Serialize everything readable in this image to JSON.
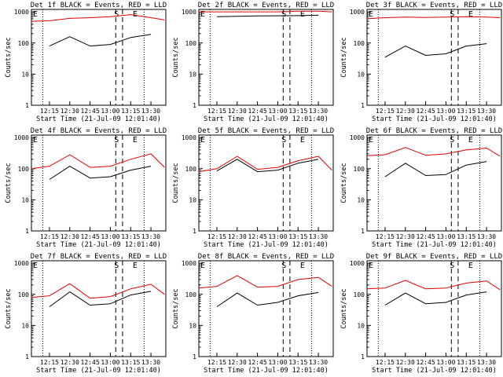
{
  "figure": {
    "background": "#ffffff",
    "colors": {
      "events": "#000000",
      "lld": "#e00000",
      "axes": "#000000"
    }
  },
  "chart_data": [
    {
      "type": "line",
      "title": "Det 1f BLACK = Events, RED = LLD",
      "xlabel": "Start Time (21-Jul-09 12:01:40)",
      "ylabel": "Counts/sec",
      "x_ticks": [
        "12:15",
        "12:30",
        "12:45",
        "13:00",
        "13:15",
        "13:30"
      ],
      "y_ticks": [
        "1",
        "10",
        "100",
        "1000"
      ],
      "ylim": [
        1,
        1200
      ],
      "y_scale": "log",
      "x": [
        "12:00",
        "12:15",
        "12:30",
        "12:45",
        "13:00",
        "13:15",
        "13:30",
        "13:40"
      ],
      "markers": {
        "left": "E",
        "S": "S",
        "E": "E"
      },
      "series": [
        {
          "color": "#e00000",
          "values": [
            500,
            520,
            620,
            650,
            700,
            820,
            650,
            550
          ]
        },
        {
          "color": "#000000",
          "values": [
            null,
            80,
            160,
            80,
            90,
            150,
            190,
            null
          ]
        }
      ]
    },
    {
      "type": "line",
      "title": "Det 2f BLACK = Events, RED = LLD",
      "xlabel": "Start Time (21-Jul-09 12:01:40)",
      "ylabel": "Counts/sec",
      "x_ticks": [
        "12:15",
        "12:30",
        "12:45",
        "13:00",
        "13:15",
        "13:30"
      ],
      "y_ticks": [
        "1",
        "10",
        "100",
        "1000"
      ],
      "ylim": [
        1,
        1200
      ],
      "y_scale": "log",
      "x": [
        "12:00",
        "12:15",
        "12:30",
        "12:45",
        "13:00",
        "13:15",
        "13:30",
        "13:40"
      ],
      "markers": {
        "left": "E",
        "S": "S",
        "E": "E"
      },
      "series": [
        {
          "color": "#e00000",
          "values": [
            1000,
            1000,
            1000,
            1000,
            1000,
            1050,
            1050,
            1000
          ]
        },
        {
          "color": "#000000",
          "values": [
            null,
            700,
            720,
            740,
            750,
            760,
            780,
            null
          ]
        }
      ]
    },
    {
      "type": "line",
      "title": "Det 3f BLACK = Events, RED = LLD",
      "xlabel": "Start Time (21-Jul-09 12:01:40)",
      "ylabel": "Counts/sec",
      "x_ticks": [
        "12:15",
        "12:30",
        "12:45",
        "13:00",
        "13:15",
        "13:30"
      ],
      "y_ticks": [
        "1",
        "10",
        "100",
        "1000"
      ],
      "ylim": [
        1,
        1200
      ],
      "y_scale": "log",
      "x": [
        "12:00",
        "12:15",
        "12:30",
        "12:45",
        "13:00",
        "13:15",
        "13:30",
        "13:40"
      ],
      "markers": {
        "left": "E",
        "S": "S",
        "E": "E"
      },
      "series": [
        {
          "color": "#e00000",
          "values": [
            600,
            650,
            680,
            660,
            680,
            700,
            680,
            650
          ]
        },
        {
          "color": "#000000",
          "values": [
            null,
            35,
            80,
            40,
            45,
            80,
            95,
            null
          ]
        }
      ]
    },
    {
      "type": "line",
      "title": "Det 4f BLACK = Events, RED = LLD",
      "xlabel": "Start Time (21-Jul-09 12:01:40)",
      "ylabel": "Counts/sec",
      "x_ticks": [
        "12:15",
        "12:30",
        "12:45",
        "13:00",
        "13:15",
        "13:30"
      ],
      "y_ticks": [
        "1",
        "10",
        "100",
        "1000"
      ],
      "ylim": [
        1,
        1200
      ],
      "y_scale": "log",
      "x": [
        "12:00",
        "12:15",
        "12:30",
        "12:45",
        "13:00",
        "13:15",
        "13:30",
        "13:40"
      ],
      "markers": {
        "left": "E",
        "S": "S",
        "E": "E"
      },
      "series": [
        {
          "color": "#e00000",
          "values": [
            100,
            120,
            280,
            110,
            120,
            200,
            300,
            110
          ]
        },
        {
          "color": "#000000",
          "values": [
            null,
            45,
            120,
            50,
            55,
            90,
            120,
            null
          ]
        }
      ]
    },
    {
      "type": "line",
      "title": "Det 5f BLACK = Events, RED = LLD",
      "xlabel": "Start Time (21-Jul-09 12:01:40)",
      "ylabel": "Counts/sec",
      "x_ticks": [
        "12:15",
        "12:30",
        "12:45",
        "13:00",
        "13:15",
        "13:30"
      ],
      "y_ticks": [
        "1",
        "10",
        "100",
        "1000"
      ],
      "ylim": [
        1,
        1200
      ],
      "y_scale": "log",
      "x": [
        "12:00",
        "12:15",
        "12:30",
        "12:45",
        "13:00",
        "13:15",
        "13:30",
        "13:40"
      ],
      "markers": {
        "left": "E",
        "S": "S",
        "E": "E"
      },
      "series": [
        {
          "color": "#e00000",
          "values": [
            80,
            100,
            250,
            95,
            110,
            180,
            250,
            90
          ]
        },
        {
          "color": "#000000",
          "values": [
            null,
            85,
            200,
            80,
            90,
            150,
            200,
            null
          ]
        }
      ]
    },
    {
      "type": "line",
      "title": "Det 6f BLACK = Events, RED = LLD",
      "xlabel": "Start Time (21-Jul-09 12:01:40)",
      "ylabel": "Counts/sec",
      "x_ticks": [
        "12:15",
        "12:30",
        "12:45",
        "13:00",
        "13:15",
        "13:30"
      ],
      "y_ticks": [
        "1",
        "10",
        "100",
        "1000"
      ],
      "ylim": [
        1,
        1200
      ],
      "y_scale": "log",
      "x": [
        "12:00",
        "12:15",
        "12:30",
        "12:45",
        "13:00",
        "13:15",
        "13:30",
        "13:40"
      ],
      "markers": {
        "left": "E",
        "S": "S",
        "E": "E"
      },
      "series": [
        {
          "color": "#e00000",
          "values": [
            260,
            280,
            480,
            270,
            300,
            400,
            460,
            250
          ]
        },
        {
          "color": "#000000",
          "values": [
            null,
            55,
            150,
            60,
            65,
            130,
            170,
            null
          ]
        }
      ]
    },
    {
      "type": "line",
      "title": "Det 7f BLACK = Events, RED = LLD",
      "xlabel": "Start Time (21-Jul-09 12:01:40)",
      "ylabel": "Counts/sec",
      "x_ticks": [
        "12:15",
        "12:30",
        "12:45",
        "13:00",
        "13:15",
        "13:30"
      ],
      "y_ticks": [
        "1",
        "10",
        "100",
        "1000"
      ],
      "ylim": [
        1,
        1200
      ],
      "y_scale": "log",
      "x": [
        "12:00",
        "12:15",
        "12:30",
        "12:45",
        "13:00",
        "13:15",
        "13:30",
        "13:40"
      ],
      "markers": {
        "left": "E",
        "S": "S",
        "E": "E"
      },
      "series": [
        {
          "color": "#e00000",
          "values": [
            80,
            90,
            220,
            75,
            85,
            150,
            210,
            100
          ]
        },
        {
          "color": "#000000",
          "values": [
            null,
            40,
            120,
            45,
            50,
            95,
            125,
            null
          ]
        }
      ]
    },
    {
      "type": "line",
      "title": "Det 8f BLACK = Events, RED = LLD",
      "xlabel": "Start Time (21-Jul-09 12:01:40)",
      "ylabel": "Counts/sec",
      "x_ticks": [
        "12:15",
        "12:30",
        "12:45",
        "13:00",
        "13:15",
        "13:30"
      ],
      "y_ticks": [
        "1",
        "10",
        "100",
        "1000"
      ],
      "ylim": [
        1,
        1200
      ],
      "y_scale": "log",
      "x": [
        "12:00",
        "12:15",
        "12:30",
        "12:45",
        "13:00",
        "13:15",
        "13:30",
        "13:40"
      ],
      "markers": {
        "left": "E",
        "S": "S",
        "E": "E"
      },
      "series": [
        {
          "color": "#e00000",
          "values": [
            160,
            180,
            400,
            170,
            180,
            300,
            350,
            180
          ]
        },
        {
          "color": "#000000",
          "values": [
            null,
            40,
            110,
            45,
            55,
            90,
            115,
            null
          ]
        }
      ]
    },
    {
      "type": "line",
      "title": "Det 9f BLACK = Events, RED = LLD",
      "xlabel": "Start Time (21-Jul-09 12:01:40)",
      "ylabel": "Counts/sec",
      "x_ticks": [
        "12:15",
        "12:30",
        "12:45",
        "13:00",
        "13:15",
        "13:30"
      ],
      "y_ticks": [
        "1",
        "10",
        "100",
        "1000"
      ],
      "ylim": [
        1,
        1200
      ],
      "y_scale": "log",
      "x": [
        "12:00",
        "12:15",
        "12:30",
        "12:45",
        "13:00",
        "13:15",
        "13:30",
        "13:40"
      ],
      "markers": {
        "left": "E",
        "S": "S",
        "E": "E"
      },
      "series": [
        {
          "color": "#e00000",
          "values": [
            150,
            160,
            280,
            150,
            160,
            230,
            270,
            140
          ]
        },
        {
          "color": "#000000",
          "values": [
            null,
            45,
            110,
            50,
            55,
            95,
            120,
            null
          ]
        }
      ]
    }
  ]
}
